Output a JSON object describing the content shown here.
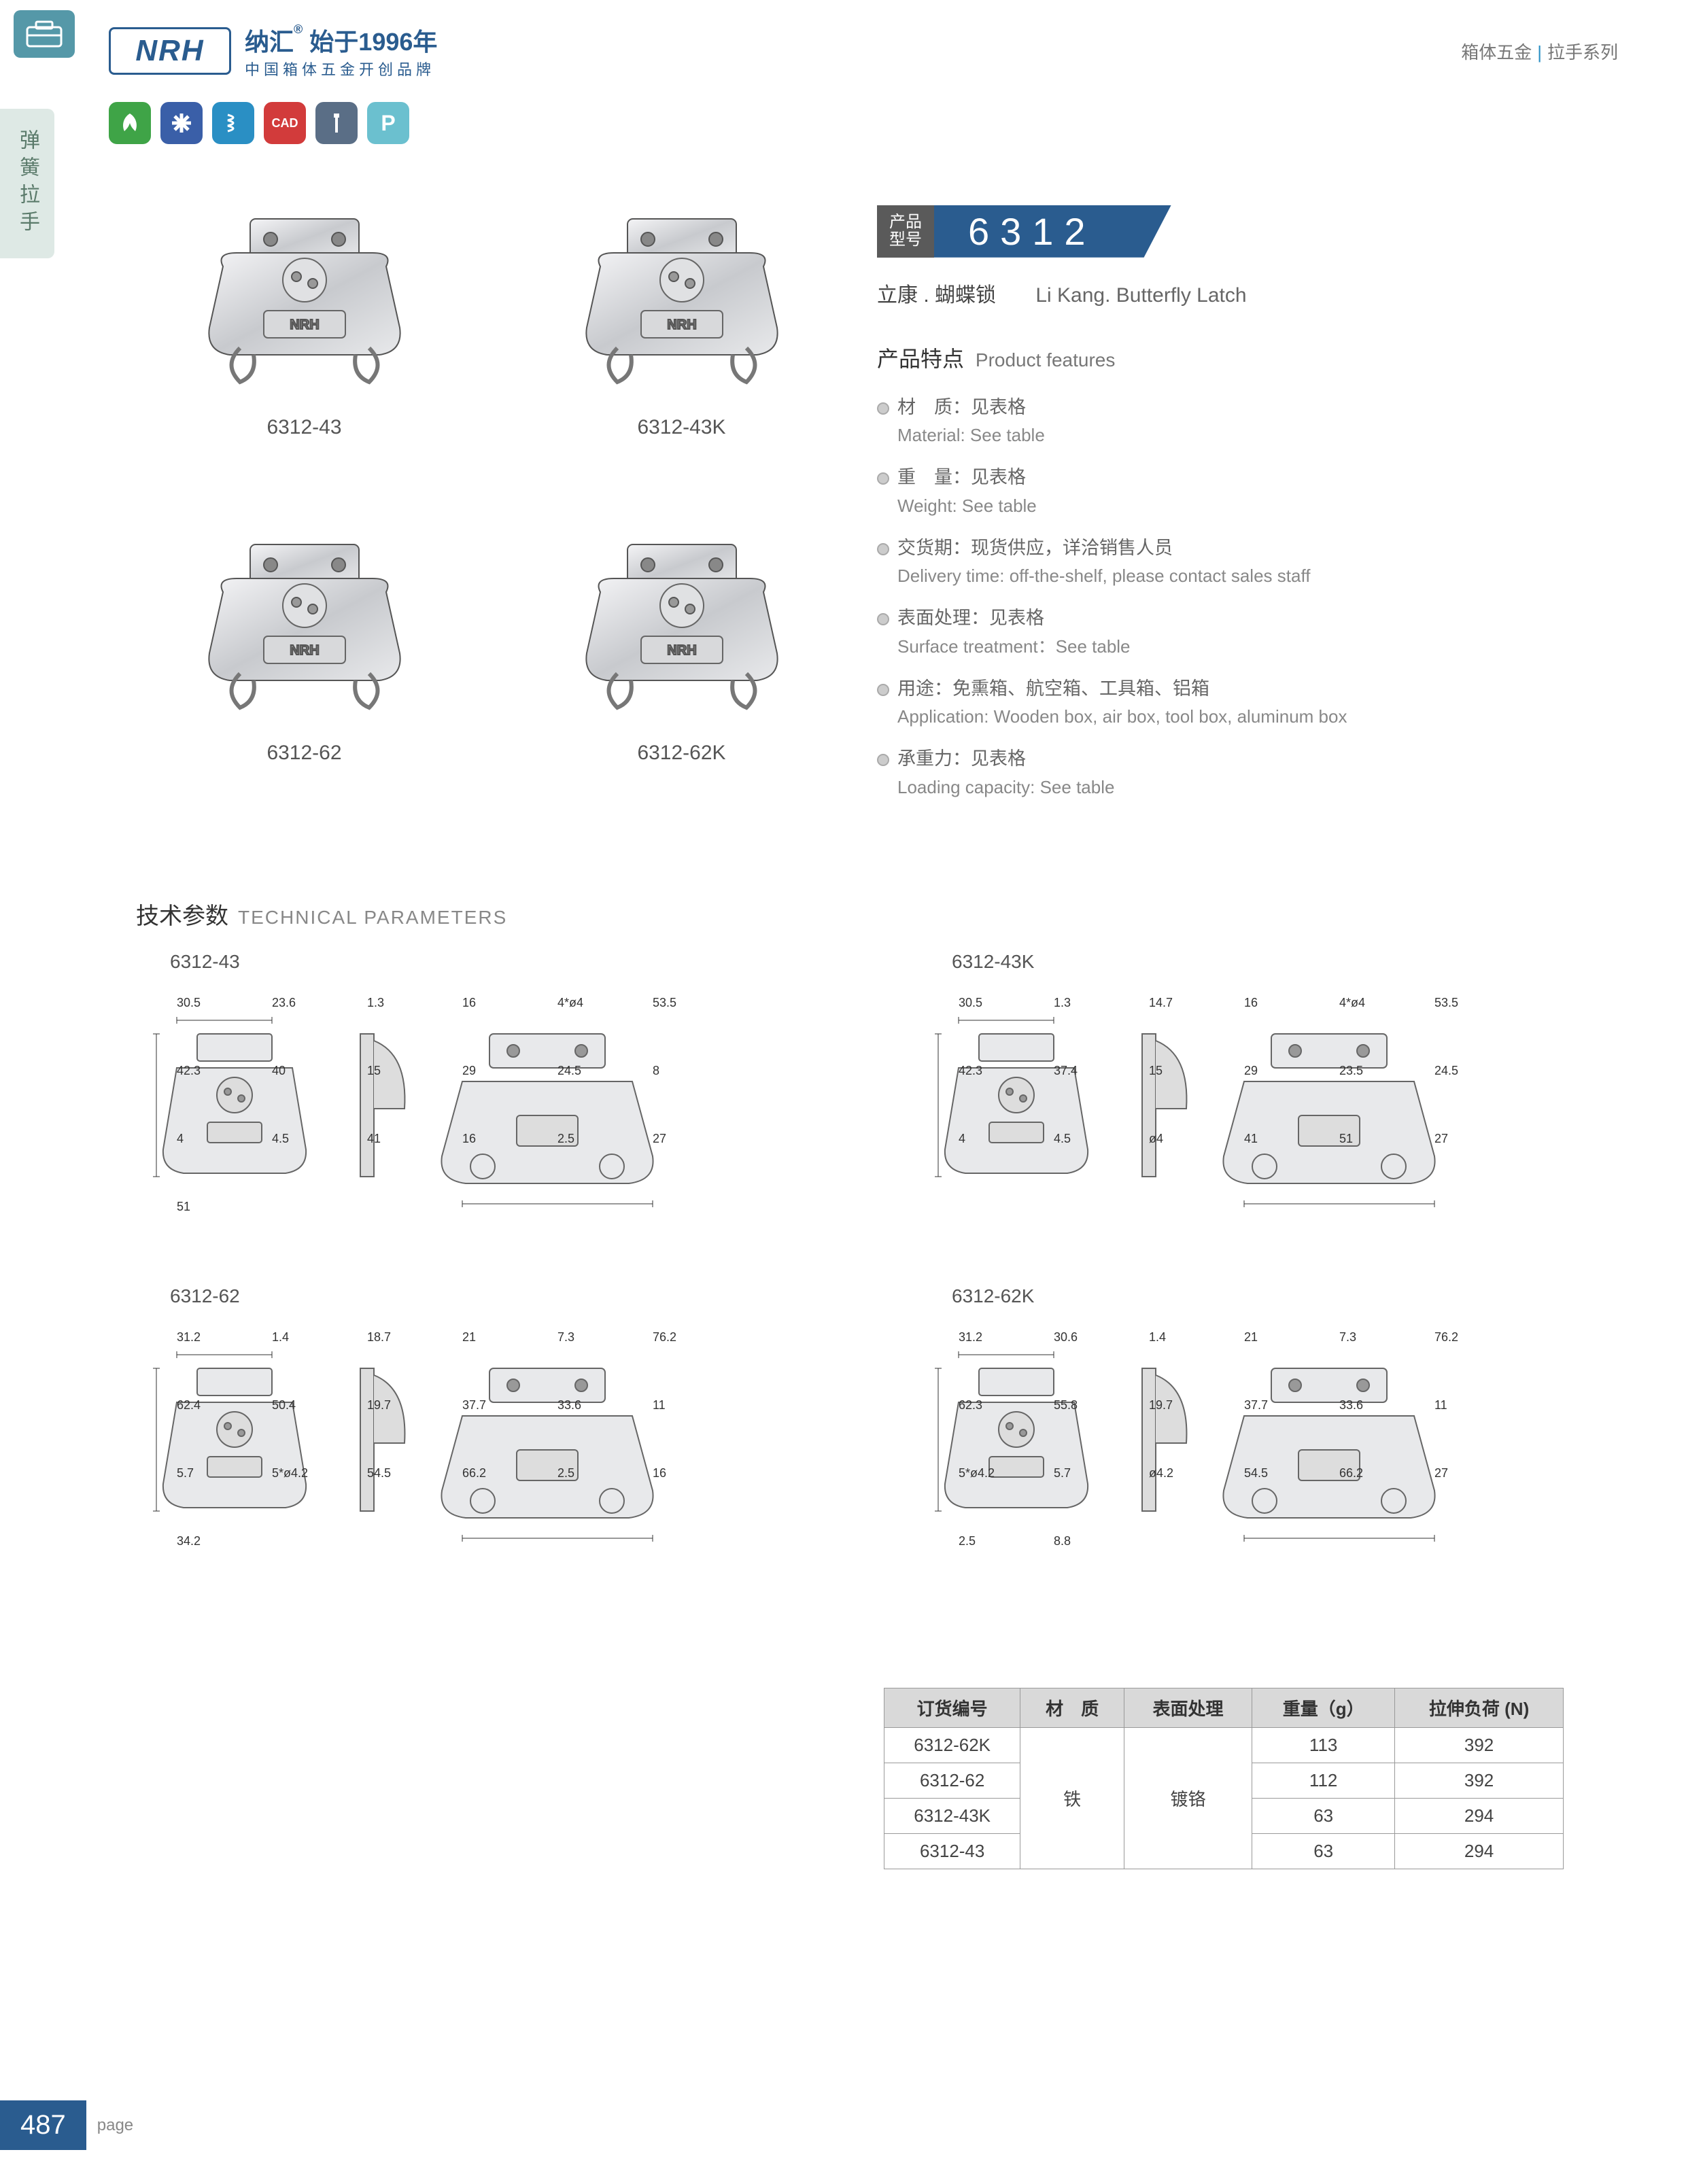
{
  "header": {
    "logo": "NRH",
    "brand_cn": "纳汇",
    "brand_since": "始于1996年",
    "brand_tagline": "中国箱体五金开创品牌",
    "category_cn": "箱体五金",
    "series_cn": "拉手系列"
  },
  "side_tab": "弹簧拉手",
  "icons": [
    {
      "bg": "#3fa447",
      "glyph": "leaf"
    },
    {
      "bg": "#3a5fa8",
      "glyph": "cross"
    },
    {
      "bg": "#2a8fc4",
      "glyph": "spring"
    },
    {
      "bg": "#d23b3b",
      "glyph": "CAD"
    },
    {
      "bg": "#5a6e86",
      "glyph": "screw"
    },
    {
      "bg": "#6bc0cf",
      "glyph": "P"
    }
  ],
  "products": [
    {
      "id": "6312-43"
    },
    {
      "id": "6312-43K"
    },
    {
      "id": "6312-62"
    },
    {
      "id": "6312-62K"
    }
  ],
  "model": {
    "badge_l1": "产品",
    "badge_l2": "型号",
    "number": "6312",
    "subtitle_cn": "立康 . 蝴蝶锁",
    "subtitle_en": "Li Kang. Butterfly Latch"
  },
  "features": {
    "title_cn": "产品特点",
    "title_en": "Product features",
    "items": [
      {
        "cn": "材　质：见表格",
        "en": "Material: See table"
      },
      {
        "cn": "重　量：见表格",
        "en": "Weight: See table"
      },
      {
        "cn": "交货期：现货供应，详洽销售人员",
        "en": "Delivery time: off-the-shelf, please contact sales staff"
      },
      {
        "cn": "表面处理：见表格",
        "en": "Surface treatment：See table"
      },
      {
        "cn": "用途：免熏箱、航空箱、工具箱、铝箱",
        "en": "Application: Wooden box, air box, tool box, aluminum box"
      },
      {
        "cn": "承重力：见表格",
        "en": "Loading capacity: See table"
      }
    ]
  },
  "tech": {
    "title_cn": "技术参数",
    "title_en": "TECHNICAL PARAMETERS",
    "drawings": [
      "6312-43",
      "6312-43K",
      "6312-62",
      "6312-62K"
    ],
    "dims": {
      "6312-43": [
        "30.5",
        "23.6",
        "1.3",
        "16",
        "4*ø4",
        "53.5",
        "42.3",
        "40",
        "15",
        "29",
        "24.5",
        "8",
        "4",
        "4.5",
        "41",
        "16",
        "2.5",
        "27",
        "51"
      ],
      "6312-43K": [
        "30.5",
        "1.3",
        "14.7",
        "16",
        "4*ø4",
        "53.5",
        "42.3",
        "37.4",
        "15",
        "29",
        "23.5",
        "24.5",
        "4",
        "4.5",
        "ø4",
        "41",
        "51",
        "27"
      ],
      "6312-62": [
        "31.2",
        "1.4",
        "18.7",
        "21",
        "7.3",
        "76.2",
        "62.4",
        "50.4",
        "19.7",
        "37.7",
        "33.6",
        "11",
        "5.7",
        "5*ø4.2",
        "54.5",
        "66.2",
        "2.5",
        "16",
        "34.2"
      ],
      "6312-62K": [
        "31.2",
        "30.6",
        "1.4",
        "21",
        "7.3",
        "76.2",
        "62.3",
        "55.8",
        "19.7",
        "37.7",
        "33.6",
        "11",
        "5*ø4.2",
        "5.7",
        "ø4.2",
        "54.5",
        "66.2",
        "27",
        "2.5",
        "8.8"
      ]
    }
  },
  "table": {
    "headers": [
      "订货编号",
      "材　质",
      "表面处理",
      "重量（g）",
      "拉伸负荷 (N)"
    ],
    "material": "铁",
    "surface": "镀铬",
    "rows": [
      {
        "code": "6312-62K",
        "weight": "113",
        "load": "392"
      },
      {
        "code": "6312-62",
        "weight": "112",
        "load": "392"
      },
      {
        "code": "6312-43K",
        "weight": "63",
        "load": "294"
      },
      {
        "code": "6312-43",
        "weight": "63",
        "load": "294"
      }
    ]
  },
  "page_number": "487",
  "page_label": "page",
  "colors": {
    "brand": "#2a5c8f",
    "side_tab_bg": "#dee9e5",
    "table_header_bg": "#d9d9d9"
  }
}
